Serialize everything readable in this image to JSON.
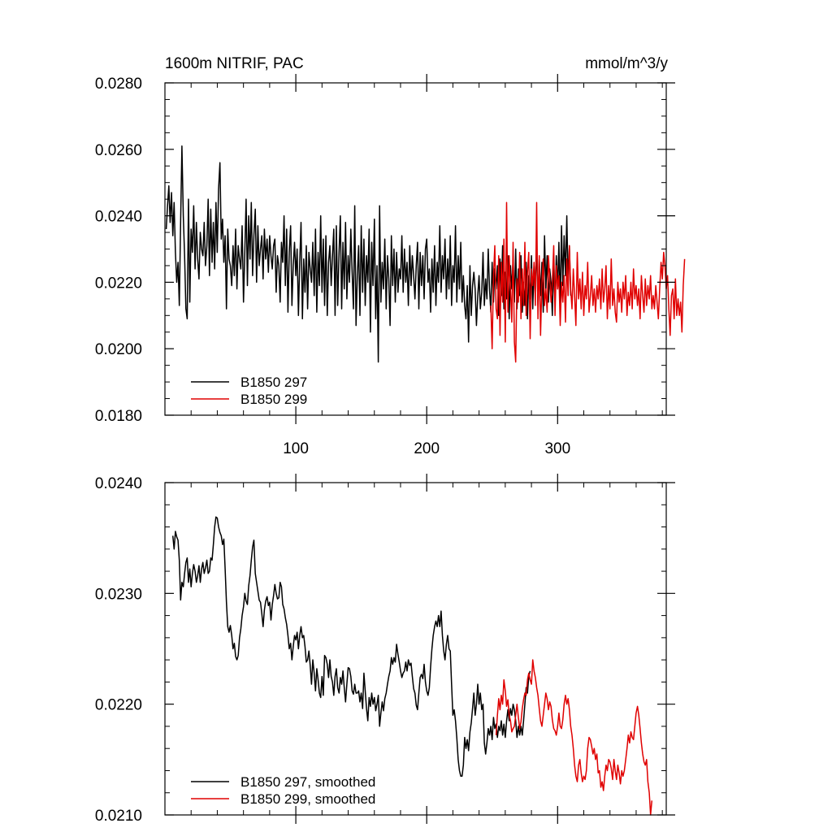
{
  "chart_data": [
    {
      "type": "line",
      "title_left": "1600m NITRIF, PAC",
      "title_right": "mmol/m^3/y",
      "xlabel": "",
      "ylabel": "",
      "xlim": [
        0,
        383
      ],
      "ylim": [
        0.018,
        0.028
      ],
      "x_ticks": [
        100,
        200,
        300
      ],
      "x_tick_labels": [
        "100",
        "200",
        "300"
      ],
      "y_ticks": [
        0.018,
        0.02,
        0.022,
        0.024,
        0.026,
        0.028
      ],
      "y_tick_labels": [
        "0.0180",
        "0.0200",
        "0.0220",
        "0.0240",
        "0.0260",
        "0.0280"
      ],
      "legend_position": "bottom-left",
      "series": [
        {
          "name": "B1850 297",
          "color": "#000000",
          "x_start": 1,
          "values": [
            0.0236,
            0.0243,
            0.0249,
            0.0238,
            0.0247,
            0.0234,
            0.0244,
            0.0229,
            0.022,
            0.0226,
            0.0213,
            0.0238,
            0.0261,
            0.024,
            0.0228,
            0.0212,
            0.0209,
            0.0245,
            0.0214,
            0.0236,
            0.0229,
            0.0243,
            0.0224,
            0.0238,
            0.0227,
            0.0221,
            0.0235,
            0.023,
            0.0228,
            0.0238,
            0.0225,
            0.0231,
            0.0245,
            0.0222,
            0.0242,
            0.0226,
            0.0238,
            0.0224,
            0.0244,
            0.0229,
            0.0248,
            0.0256,
            0.0233,
            0.0239,
            0.0226,
            0.0234,
            0.0212,
            0.0236,
            0.0227,
            0.0225,
            0.0219,
            0.0231,
            0.0222,
            0.0236,
            0.0218,
            0.0231,
            0.0227,
            0.0224,
            0.0237,
            0.0214,
            0.0229,
            0.0245,
            0.0219,
            0.024,
            0.0227,
            0.0244,
            0.0222,
            0.0234,
            0.0242,
            0.022,
            0.0237,
            0.0225,
            0.023,
            0.0234,
            0.0221,
            0.0236,
            0.0227,
            0.0233,
            0.0223,
            0.0234,
            0.0228,
            0.0224,
            0.0231,
            0.0233,
            0.0217,
            0.0228,
            0.0225,
            0.0214,
            0.0232,
            0.0226,
            0.024,
            0.0219,
            0.0236,
            0.0211,
            0.0229,
            0.0237,
            0.0213,
            0.0225,
            0.0232,
            0.0222,
            0.023,
            0.021,
            0.0226,
            0.0238,
            0.0209,
            0.0227,
            0.0217,
            0.0231,
            0.0212,
            0.0229,
            0.0224,
            0.022,
            0.0232,
            0.0216,
            0.0236,
            0.0211,
            0.0229,
            0.0219,
            0.024,
            0.0217,
            0.0233,
            0.0213,
            0.0234,
            0.021,
            0.0226,
            0.0231,
            0.0219,
            0.0228,
            0.0236,
            0.021,
            0.0237,
            0.0213,
            0.0229,
            0.024,
            0.0212,
            0.0232,
            0.0218,
            0.0238,
            0.0215,
            0.0228,
            0.022,
            0.0236,
            0.0223,
            0.0212,
            0.0243,
            0.0207,
            0.0222,
            0.0231,
            0.021,
            0.0237,
            0.0217,
            0.0233,
            0.0213,
            0.0228,
            0.022,
            0.0236,
            0.0205,
            0.0232,
            0.0219,
            0.0239,
            0.0209,
            0.0225,
            0.0196,
            0.0243,
            0.0214,
            0.0226,
            0.0218,
            0.0233,
            0.0212,
            0.0228,
            0.0221,
            0.0207,
            0.0234,
            0.0219,
            0.023,
            0.0214,
            0.0229,
            0.0217,
            0.0224,
            0.0221,
            0.0234,
            0.0217,
            0.023,
            0.022,
            0.0226,
            0.0213,
            0.0231,
            0.0219,
            0.0228,
            0.0222,
            0.0215,
            0.0225,
            0.0232,
            0.0212,
            0.0229,
            0.0219,
            0.0228,
            0.0215,
            0.023,
            0.0233,
            0.022,
            0.0224,
            0.0211,
            0.0227,
            0.0217,
            0.0231,
            0.0213,
            0.0226,
            0.022,
            0.0237,
            0.0217,
            0.0228,
            0.0221,
            0.0233,
            0.0215,
            0.0227,
            0.0218,
            0.0234,
            0.0213,
            0.0225,
            0.022,
            0.0237,
            0.0214,
            0.0228,
            0.0218,
            0.0232,
            0.0214,
            0.0222,
            0.0213,
            0.0209,
            0.0219,
            0.0202,
            0.0225,
            0.021,
            0.0219,
            0.0223,
            0.0218,
            0.0207,
            0.0216,
            0.0222,
            0.0212,
            0.0217,
            0.0229,
            0.0213,
            0.0221,
            0.0215,
            0.023,
            0.0218,
            0.0211,
            0.0226,
            0.0214,
            0.0224,
            0.0218,
            0.0225,
            0.021,
            0.0227,
            0.0216,
            0.0231,
            0.0212,
            0.0223,
            0.0215,
            0.0228,
            0.0209,
            0.0225,
            0.0218,
            0.0227,
            0.0214,
            0.023,
            0.0212,
            0.0224,
            0.0216,
            0.0228,
            0.0211,
            0.022,
            0.0213,
            0.0226,
            0.0209,
            0.0222,
            0.0215,
            0.0228,
            0.0212,
            0.0225,
            0.0219,
            0.0231,
            0.0213,
            0.0227,
            0.0216,
            0.0226,
            0.0211,
            0.0234,
            0.0218,
            0.0228,
            0.0214,
            0.0224,
            0.022,
            0.021,
            0.0226,
            0.0214,
            0.0228,
            0.0218,
            0.0232,
            0.0212,
            0.0237,
            0.0219,
            0.0234,
            0.0222,
            0.024,
            0.022,
            0.0231,
            0.0216
          ]
        },
        {
          "name": "B1850 299",
          "color": "#e00000",
          "x_start": 249,
          "values": [
            0.0213,
            0.02,
            0.0222,
            0.0231,
            0.0212,
            0.0209,
            0.0228,
            0.0204,
            0.0226,
            0.0214,
            0.0233,
            0.0202,
            0.0244,
            0.0211,
            0.0228,
            0.0218,
            0.0208,
            0.0232,
            0.0202,
            0.0196,
            0.0221,
            0.0214,
            0.0229,
            0.0209,
            0.0224,
            0.0213,
            0.0232,
            0.021,
            0.0223,
            0.0229,
            0.0203,
            0.0224,
            0.0219,
            0.0226,
            0.0213,
            0.0244,
            0.0209,
            0.0228,
            0.0204,
            0.022,
            0.0227,
            0.0213,
            0.0218,
            0.0211,
            0.0228,
            0.0221,
            0.0214,
            0.022,
            0.0231,
            0.021,
            0.0225,
            0.0218,
            0.0222,
            0.0207,
            0.022,
            0.0214,
            0.0222,
            0.0208,
            0.0227,
            0.0216,
            0.0231,
            0.0218,
            0.0212,
            0.0224,
            0.0216,
            0.0207,
            0.0229,
            0.0215,
            0.0221,
            0.0212,
            0.0223,
            0.021,
            0.0219,
            0.0215,
            0.0226,
            0.0211,
            0.0216,
            0.0222,
            0.0213,
            0.0218,
            0.0211,
            0.0219,
            0.0215,
            0.0221,
            0.0212,
            0.0224,
            0.0214,
            0.0218,
            0.0225,
            0.0209,
            0.0219,
            0.0212,
            0.0227,
            0.0213,
            0.0218,
            0.0211,
            0.0208,
            0.022,
            0.0214,
            0.0218,
            0.0211,
            0.022,
            0.0215,
            0.0222,
            0.021,
            0.0217,
            0.0213,
            0.022,
            0.0212,
            0.0224,
            0.0215,
            0.0219,
            0.0213,
            0.0218,
            0.0209,
            0.0222,
            0.0216,
            0.0211,
            0.0221,
            0.0213,
            0.0219,
            0.0215,
            0.0222,
            0.0212,
            0.0216,
            0.0212,
            0.0219,
            0.0214,
            0.0209,
            0.0218,
            0.0226,
            0.0221,
            0.0229,
            0.0225,
            0.0218,
            0.0222,
            0.0212,
            0.0204,
            0.0216,
            0.0218,
            0.0209,
            0.0221,
            0.021,
            0.0215,
            0.021,
            0.0214,
            0.0205,
            0.0219,
            0.0227
          ]
        }
      ]
    },
    {
      "type": "line",
      "title_left": "",
      "title_right": "",
      "xlabel": "",
      "ylabel": "",
      "xlim": [
        0,
        383
      ],
      "ylim": [
        0.021,
        0.024
      ],
      "x_ticks": [
        100,
        200,
        300
      ],
      "y_ticks": [
        0.021,
        0.022,
        0.023,
        0.024
      ],
      "y_tick_labels": [
        "0.0210",
        "0.0220",
        "0.0230",
        "0.0240"
      ],
      "legend_position": "bottom-left",
      "series": [
        {
          "name": "B1850 297, smoothed",
          "color": "#000000",
          "x_start": 6,
          "values": [
            0.02352,
            0.0234,
            0.02356,
            0.02351,
            0.02348,
            0.0233,
            0.02294,
            0.0231,
            0.02306,
            0.02318,
            0.02328,
            0.02332,
            0.0231,
            0.02322,
            0.02306,
            0.02318,
            0.02326,
            0.0232,
            0.0231,
            0.02316,
            0.02325,
            0.0231,
            0.02322,
            0.02328,
            0.02318,
            0.02323,
            0.0233,
            0.02318,
            0.0232,
            0.02332,
            0.0233,
            0.02344,
            0.0236,
            0.02369,
            0.02368,
            0.0236,
            0.02355,
            0.02352,
            0.02344,
            0.02349,
            0.02322,
            0.02292,
            0.0227,
            0.02265,
            0.02271,
            0.02262,
            0.0225,
            0.02255,
            0.02243,
            0.0224,
            0.02244,
            0.0226,
            0.02268,
            0.0228,
            0.02288,
            0.023,
            0.02293,
            0.0229,
            0.02307,
            0.02316,
            0.0233,
            0.02342,
            0.02348,
            0.02318,
            0.0231,
            0.02302,
            0.02294,
            0.02292,
            0.02282,
            0.0227,
            0.02285,
            0.02293,
            0.02297,
            0.02289,
            0.02292,
            0.02276,
            0.0229,
            0.02298,
            0.02308,
            0.023,
            0.02295,
            0.02296,
            0.0231,
            0.02306,
            0.0229,
            0.02286,
            0.02278,
            0.02272,
            0.02262,
            0.0225,
            0.02255,
            0.0224,
            0.02252,
            0.02262,
            0.02258,
            0.02265,
            0.0225,
            0.02262,
            0.0227,
            0.0226,
            0.02262,
            0.02252,
            0.02238,
            0.0224,
            0.02248,
            0.02235,
            0.02218,
            0.0224,
            0.02228,
            0.02212,
            0.02232,
            0.02222,
            0.0221,
            0.02206,
            0.02225,
            0.02208,
            0.02244,
            0.02242,
            0.02236,
            0.02224,
            0.0224,
            0.02225,
            0.0222,
            0.02208,
            0.02225,
            0.02232,
            0.02215,
            0.0221,
            0.02224,
            0.02218,
            0.0223,
            0.02215,
            0.02202,
            0.02218,
            0.02233,
            0.02232,
            0.02225,
            0.02212,
            0.02209,
            0.02218,
            0.0221,
            0.0221,
            0.02212,
            0.02202,
            0.0221,
            0.02196,
            0.02228,
            0.02212,
            0.02196,
            0.02185,
            0.02206,
            0.02198,
            0.0221,
            0.022,
            0.02206,
            0.02194,
            0.022,
            0.02208,
            0.0218,
            0.02192,
            0.02202,
            0.02194,
            0.02205,
            0.0221,
            0.02218,
            0.02225,
            0.0223,
            0.02242,
            0.02236,
            0.02242,
            0.02238,
            0.02254,
            0.02245,
            0.02238,
            0.0223,
            0.02224,
            0.02228,
            0.0223,
            0.02238,
            0.0223,
            0.0224,
            0.02235,
            0.02237,
            0.02225,
            0.02214,
            0.0221,
            0.02199,
            0.02195,
            0.0221,
            0.02224,
            0.02227,
            0.02223,
            0.02236,
            0.0222,
            0.02212,
            0.02208,
            0.02215,
            0.02234,
            0.0225,
            0.02262,
            0.0227,
            0.02275,
            0.0227,
            0.0228,
            0.0227,
            0.02284,
            0.02262,
            0.02248,
            0.0224,
            0.02254,
            0.02262,
            0.0225,
            0.02248,
            0.02218,
            0.0219,
            0.02195,
            0.02185,
            0.0217,
            0.0215,
            0.0214,
            0.02135,
            0.02135,
            0.02145,
            0.0217,
            0.0216,
            0.02168,
            0.02158,
            0.02175,
            0.02183,
            0.02196,
            0.0221,
            0.0219,
            0.022,
            0.02218,
            0.022,
            0.0221,
            0.02195,
            0.022,
            0.02165,
            0.02155,
            0.02165,
            0.02178,
            0.02172,
            0.0218,
            0.02168,
            0.02188,
            0.02178,
            0.02182,
            0.0217,
            0.0218,
            0.02176,
            0.02185,
            0.02172,
            0.02182,
            0.0217,
            0.02185,
            0.02195,
            0.02185,
            0.02196,
            0.0219,
            0.022,
            0.02195,
            0.02185,
            0.0217,
            0.0218,
            0.02172,
            0.0218,
            0.02172,
            0.02185,
            0.022,
            0.02215,
            0.0221,
            0.02225,
            0.0223
          ]
        },
        {
          "name": "B1850 299, smoothed",
          "color": "#e00000",
          "x_start": 253,
          "values": [
            0.02172,
            0.0219,
            0.02205,
            0.02195,
            0.02208,
            0.022,
            0.02222,
            0.02212,
            0.02198,
            0.02204,
            0.0219,
            0.02185,
            0.02175,
            0.02178,
            0.0218,
            0.0219,
            0.022,
            0.02188,
            0.02178,
            0.02184,
            0.02196,
            0.02204,
            0.0221,
            0.02208,
            0.02222,
            0.02228,
            0.02222,
            0.02218,
            0.0224,
            0.0223,
            0.02224,
            0.02215,
            0.02208,
            0.02196,
            0.02185,
            0.0218,
            0.0219,
            0.022,
            0.0221,
            0.02205,
            0.02195,
            0.02202,
            0.02198,
            0.02186,
            0.02178,
            0.02176,
            0.02172,
            0.0218,
            0.02192,
            0.0218,
            0.02178,
            0.02186,
            0.022,
            0.02208,
            0.022,
            0.02205,
            0.02195,
            0.0218,
            0.02172,
            0.0216,
            0.02145,
            0.02135,
            0.0213,
            0.02145,
            0.0215,
            0.02138,
            0.0213,
            0.02135,
            0.02132,
            0.0214,
            0.0216,
            0.0217,
            0.02168,
            0.02162,
            0.02155,
            0.0216,
            0.0215,
            0.02155,
            0.02138,
            0.0214,
            0.02125,
            0.0213,
            0.02122,
            0.02135,
            0.02145,
            0.0214,
            0.0215,
            0.02148,
            0.02142,
            0.02132,
            0.0215,
            0.0214,
            0.02132,
            0.02145,
            0.02138,
            0.02128,
            0.0214,
            0.02135,
            0.0214,
            0.0215,
            0.0216,
            0.02172,
            0.02165,
            0.02175,
            0.0217,
            0.02168,
            0.0218,
            0.02192,
            0.02198,
            0.0219,
            0.02178,
            0.02165,
            0.02155,
            0.02148,
            0.02145,
            0.0215,
            0.0213,
            0.0212,
            0.021,
            0.02113
          ]
        }
      ]
    }
  ]
}
